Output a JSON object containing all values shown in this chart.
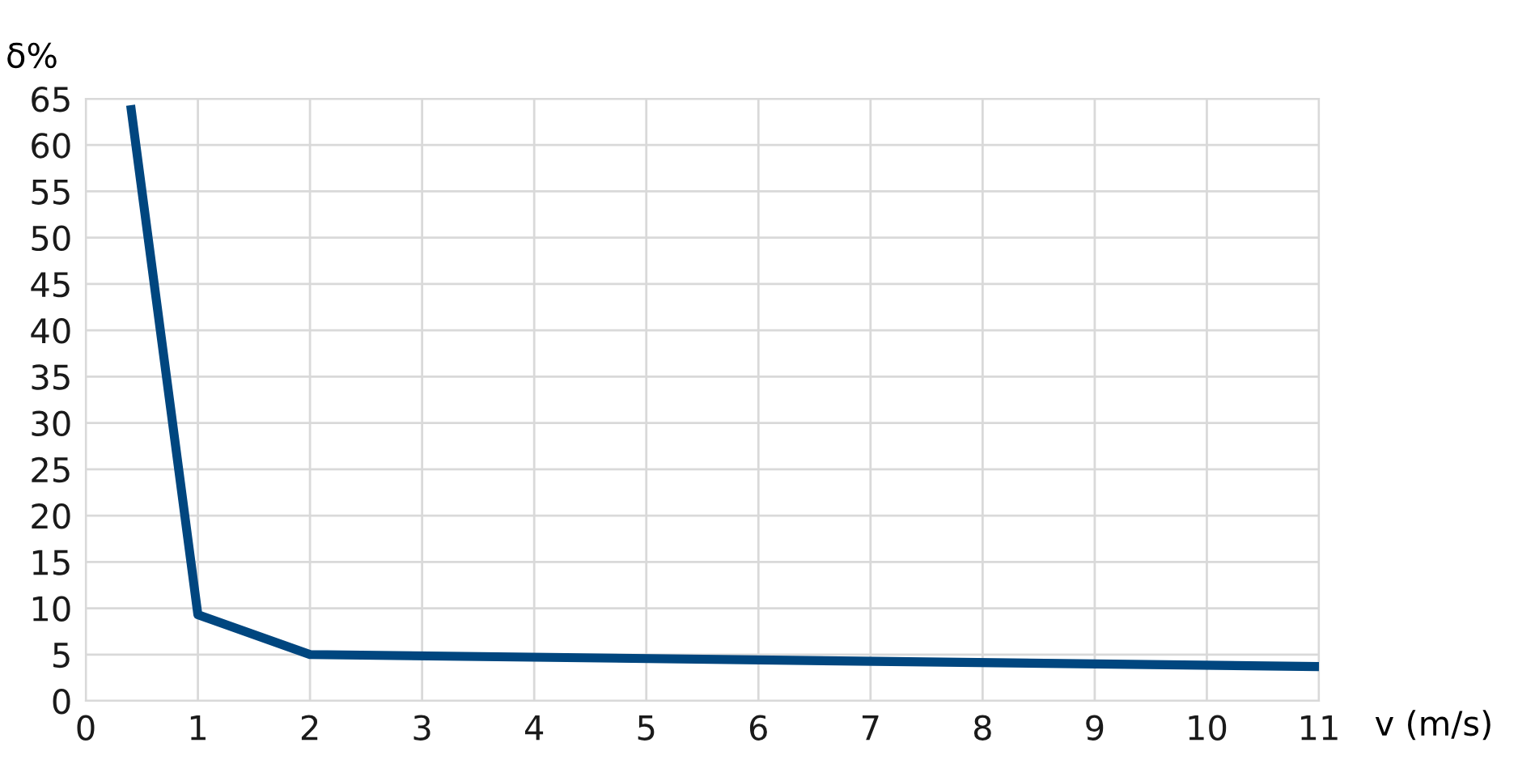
{
  "chart_data": {
    "type": "line",
    "xlabel": "v (m/s)",
    "ylabel": "δ%",
    "x": [
      0.4,
      1,
      2,
      11
    ],
    "series": [
      {
        "color": "#00467f",
        "values": [
          64.3,
          9.3,
          5.0,
          3.7
        ]
      }
    ],
    "xlim": [
      0,
      11
    ],
    "xticks": [
      0,
      1,
      2,
      3,
      4,
      5,
      6,
      7,
      8,
      9,
      10,
      11
    ],
    "ylim": [
      0,
      65
    ],
    "yticks": [
      0,
      5,
      10,
      15,
      20,
      25,
      30,
      35,
      40,
      45,
      50,
      55,
      60,
      65
    ],
    "grid": true,
    "marker": "none",
    "line_style": "solid"
  }
}
